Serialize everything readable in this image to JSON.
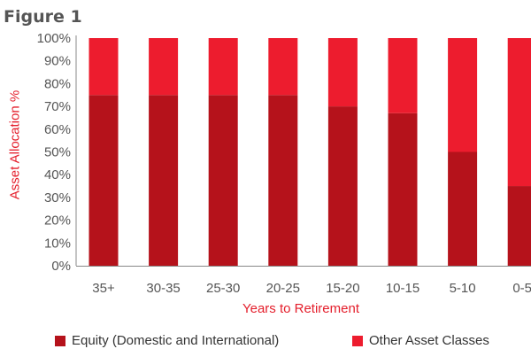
{
  "figure_label": "Figure 1",
  "colors": {
    "equity": "#b5121b",
    "other": "#ed1c2e",
    "axis_label": "#e41e2b",
    "tick": "#555555"
  },
  "chart_data": {
    "type": "bar",
    "stacked": true,
    "title": "",
    "xlabel": "Years to Retirement",
    "ylabel": "Asset Allocation %",
    "ylim": [
      0,
      100
    ],
    "yticks": [
      "0%",
      "10%",
      "20%",
      "30%",
      "40%",
      "50%",
      "60%",
      "70%",
      "80%",
      "90%",
      "100%"
    ],
    "grid": false,
    "legend_position": "bottom",
    "categories": [
      "35+",
      "30-35",
      "25-30",
      "20-25",
      "15-20",
      "10-15",
      "5-10",
      "0-5"
    ],
    "series": [
      {
        "name": "Equity (Domestic and International)",
        "values": [
          75,
          75,
          75,
          75,
          70,
          67,
          50,
          35
        ]
      },
      {
        "name": "Other Asset Classes",
        "values": [
          25,
          25,
          25,
          25,
          30,
          33,
          50,
          65
        ]
      }
    ]
  }
}
